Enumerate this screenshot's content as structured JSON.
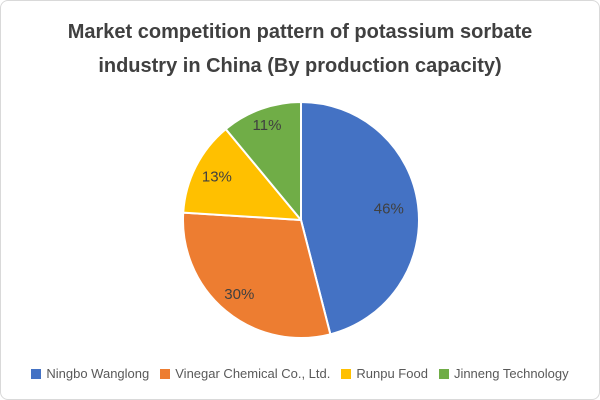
{
  "title": {
    "line1": "Market competition pattern of potassium sorbate",
    "line2": "industry in China (By production capacity)"
  },
  "chart_data": {
    "type": "pie",
    "title": "Market competition pattern of potassium sorbate industry in China (By production capacity)",
    "categories": [
      "Ningbo Wanglong",
      "Vinegar Chemical Co., Ltd.",
      "Runpu Food",
      "Jinneng Technology"
    ],
    "values": [
      46,
      30,
      13,
      11
    ],
    "data_labels": [
      "46%",
      "30%",
      "13%",
      "11%"
    ],
    "unit": "percent",
    "colors": [
      "#4472C4",
      "#ED7D31",
      "#FFC000",
      "#70AD47"
    ],
    "start_angle_deg": 0,
    "direction": "clockwise",
    "legend_position": "bottom",
    "slice_border_color": "#FFFFFF",
    "label_color": "#404040"
  },
  "legend": {
    "items": [
      {
        "label": "Ningbo Wanglong",
        "color": "#4472C4"
      },
      {
        "label": "Vinegar Chemical Co., Ltd.",
        "color": "#ED7D31"
      },
      {
        "label": "Runpu Food",
        "color": "#FFC000"
      },
      {
        "label": "Jinneng Technology",
        "color": "#70AD47"
      }
    ]
  },
  "colors": {
    "title_text": "#404040",
    "legend_text": "#595959",
    "frame_border": "#D9D9D9",
    "background": "#FFFFFF"
  }
}
